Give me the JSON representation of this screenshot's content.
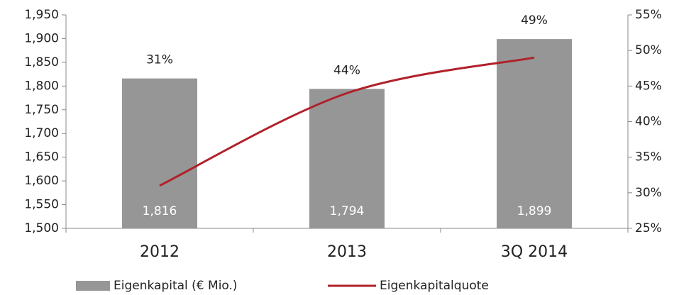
{
  "chart_data": {
    "type": "bar",
    "categories": [
      "2012",
      "2013",
      "3Q 2014"
    ],
    "series": [
      {
        "name": "Eigenkapital (€ Mio.)",
        "type": "bar",
        "color": "#969696",
        "values": [
          1816,
          1794,
          1899
        ],
        "value_labels": [
          "1,816",
          "1,794",
          "1,899"
        ]
      },
      {
        "name": "Eigenkapitalquote",
        "type": "line",
        "axis": "y2",
        "color": "#b0212a",
        "values": [
          31,
          44,
          49
        ],
        "value_labels": [
          "31%",
          "44%",
          "49%"
        ]
      }
    ],
    "ylim": [
      1500,
      1950
    ],
    "yticks": [
      {
        "value": 1500,
        "label": "1,500"
      },
      {
        "value": 1550,
        "label": "1,550"
      },
      {
        "value": 1600,
        "label": "1,600"
      },
      {
        "value": 1650,
        "label": "1,650"
      },
      {
        "value": 1700,
        "label": "1,700"
      },
      {
        "value": 1750,
        "label": "1,750"
      },
      {
        "value": 1800,
        "label": "1,800"
      },
      {
        "value": 1850,
        "label": "1,850"
      },
      {
        "value": 1900,
        "label": "1,900"
      },
      {
        "value": 1950,
        "label": "1,950"
      }
    ],
    "y2lim": [
      25,
      55
    ],
    "y2ticks": [
      {
        "value": 25,
        "label": "25%"
      },
      {
        "value": 30,
        "label": "30%"
      },
      {
        "value": 35,
        "label": "35%"
      },
      {
        "value": 40,
        "label": "40%"
      },
      {
        "value": 45,
        "label": "45%"
      },
      {
        "value": 50,
        "label": "50%"
      },
      {
        "value": 55,
        "label": "55%"
      }
    ],
    "grid": false,
    "legend": "bottom"
  }
}
